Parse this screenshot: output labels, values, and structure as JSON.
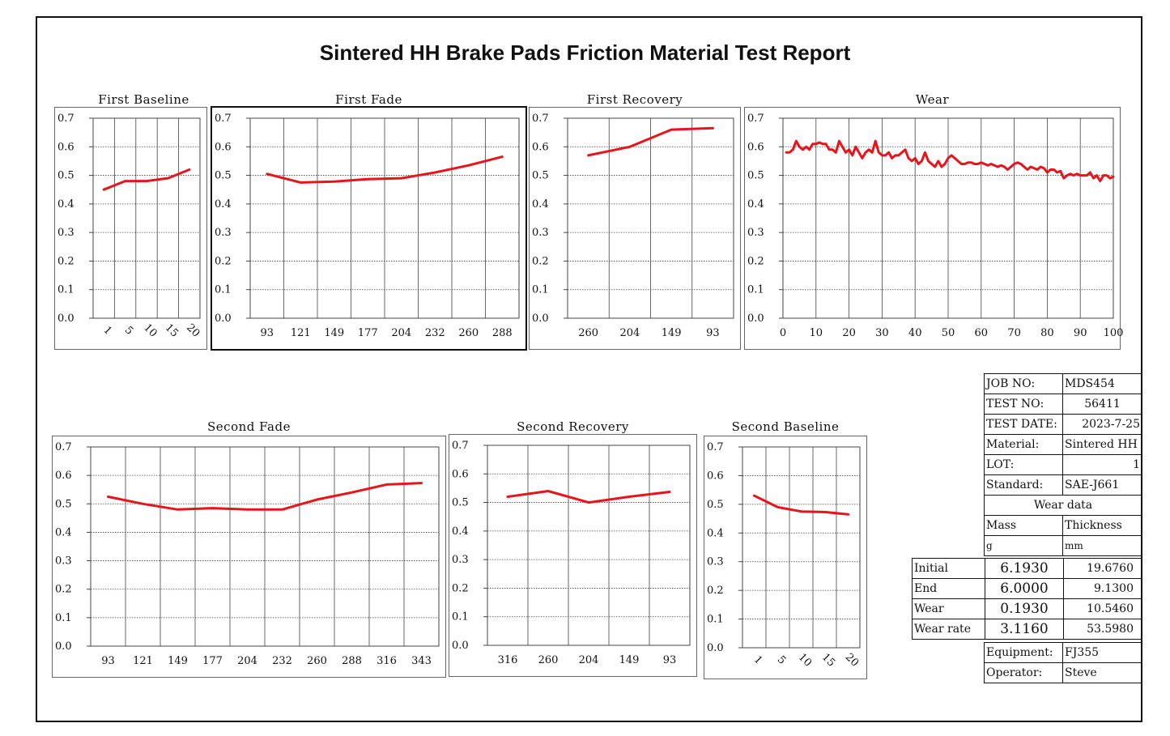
{
  "title": "Sintered HH Brake Pads Friction Material Test Report",
  "colors": {
    "series": "#e8141b",
    "grid": "#444444",
    "text": "#111111"
  },
  "chart_data": [
    {
      "id": "first-baseline",
      "title": "First Baseline",
      "type": "line",
      "categories": [
        "1",
        "5",
        "10",
        "15",
        "20"
      ],
      "values": [
        0.45,
        0.48,
        0.48,
        0.49,
        0.52
      ],
      "ylim": [
        0,
        0.7
      ],
      "yticks": [
        "0.7",
        "0.6",
        "0.5",
        "0.4",
        "0.3",
        "0.2",
        "0.1",
        "0.0"
      ],
      "tick_rotation": "rotated",
      "grid": true
    },
    {
      "id": "first-fade",
      "title": "First Fade",
      "type": "line",
      "categories": [
        "93",
        "121",
        "149",
        "177",
        "204",
        "232",
        "260",
        "288"
      ],
      "values": [
        0.505,
        0.475,
        0.478,
        0.487,
        0.49,
        0.51,
        0.535,
        0.565
      ],
      "ylim": [
        0,
        0.7
      ],
      "yticks": [
        "0.7",
        "0.6",
        "0.5",
        "0.4",
        "0.3",
        "0.2",
        "0.1",
        "0.0"
      ],
      "grid": true
    },
    {
      "id": "first-recovery",
      "title": "First Recovery",
      "type": "line",
      "categories": [
        "260",
        "204",
        "149",
        "93"
      ],
      "values": [
        0.57,
        0.6,
        0.66,
        0.665
      ],
      "ylim": [
        0,
        0.7
      ],
      "yticks": [
        "0.7",
        "0.6",
        "0.5",
        "0.4",
        "0.3",
        "0.2",
        "0.1",
        "0.0"
      ],
      "grid": true
    },
    {
      "id": "wear",
      "title": "Wear",
      "type": "line",
      "xticks": [
        "0",
        "10",
        "20",
        "30",
        "40",
        "50",
        "60",
        "70",
        "80",
        "90",
        "100"
      ],
      "x": [
        1,
        2,
        3,
        4,
        5,
        6,
        7,
        8,
        9,
        10,
        11,
        12,
        13,
        14,
        15,
        16,
        17,
        18,
        19,
        20,
        21,
        22,
        23,
        24,
        25,
        26,
        27,
        28,
        29,
        30,
        31,
        32,
        33,
        34,
        35,
        36,
        37,
        38,
        39,
        40,
        41,
        42,
        43,
        44,
        45,
        46,
        47,
        48,
        49,
        50,
        51,
        52,
        53,
        54,
        55,
        56,
        57,
        58,
        59,
        60,
        61,
        62,
        63,
        64,
        65,
        66,
        67,
        68,
        69,
        70,
        71,
        72,
        73,
        74,
        75,
        76,
        77,
        78,
        79,
        80,
        81,
        82,
        83,
        84,
        85,
        86,
        87,
        88,
        89,
        90,
        91,
        92,
        93,
        94,
        95,
        96,
        97,
        98,
        99,
        100
      ],
      "values": [
        0.58,
        0.58,
        0.59,
        0.62,
        0.6,
        0.59,
        0.6,
        0.59,
        0.61,
        0.61,
        0.615,
        0.61,
        0.61,
        0.59,
        0.59,
        0.58,
        0.62,
        0.6,
        0.58,
        0.59,
        0.57,
        0.6,
        0.58,
        0.56,
        0.58,
        0.59,
        0.58,
        0.62,
        0.58,
        0.57,
        0.57,
        0.58,
        0.56,
        0.57,
        0.57,
        0.58,
        0.59,
        0.56,
        0.55,
        0.56,
        0.54,
        0.55,
        0.58,
        0.55,
        0.54,
        0.53,
        0.55,
        0.53,
        0.54,
        0.56,
        0.57,
        0.56,
        0.55,
        0.54,
        0.54,
        0.545,
        0.545,
        0.54,
        0.54,
        0.545,
        0.54,
        0.535,
        0.54,
        0.535,
        0.53,
        0.535,
        0.53,
        0.52,
        0.53,
        0.54,
        0.545,
        0.54,
        0.53,
        0.52,
        0.53,
        0.525,
        0.52,
        0.53,
        0.525,
        0.51,
        0.52,
        0.52,
        0.51,
        0.515,
        0.49,
        0.5,
        0.505,
        0.5,
        0.505,
        0.5,
        0.5,
        0.5,
        0.51,
        0.49,
        0.5,
        0.48,
        0.5,
        0.5,
        0.49,
        0.495
      ],
      "xlim": [
        0,
        100
      ],
      "ylim": [
        0,
        0.7
      ],
      "yticks": [
        "0.7",
        "0.6",
        "0.5",
        "0.4",
        "0.3",
        "0.2",
        "0.1",
        "0.0"
      ],
      "grid": true
    },
    {
      "id": "second-fade",
      "title": "Second Fade",
      "type": "line",
      "categories": [
        "93",
        "121",
        "149",
        "177",
        "204",
        "232",
        "260",
        "288",
        "316",
        "343"
      ],
      "values": [
        0.525,
        0.5,
        0.48,
        0.485,
        0.48,
        0.48,
        0.515,
        0.54,
        0.568,
        0.573
      ],
      "ylim": [
        0,
        0.7
      ],
      "yticks": [
        "0.7",
        "0.6",
        "0.5",
        "0.4",
        "0.3",
        "0.2",
        "0.1",
        "0.0"
      ],
      "grid": true
    },
    {
      "id": "second-recovery",
      "title": "Second Recovery",
      "type": "line",
      "categories": [
        "316",
        "260",
        "204",
        "149",
        "93"
      ],
      "values": [
        0.52,
        0.54,
        0.5,
        0.52,
        0.537
      ],
      "ylim": [
        0,
        0.7
      ],
      "yticks": [
        "0.7",
        "0.6",
        "0.5",
        "0.4",
        "0.3",
        "0.2",
        "0.1",
        "0.0"
      ],
      "grid": true
    },
    {
      "id": "second-baseline",
      "title": "Second Baseline",
      "type": "line",
      "categories": [
        "1",
        "5",
        "10",
        "15",
        "20"
      ],
      "values": [
        0.53,
        0.49,
        0.475,
        0.473,
        0.465
      ],
      "ylim": [
        0,
        0.7
      ],
      "yticks": [
        "0.7",
        "0.6",
        "0.5",
        "0.4",
        "0.3",
        "0.2",
        "0.1",
        "0.0"
      ],
      "tick_rotation": "rotated",
      "grid": true
    }
  ],
  "info": {
    "job_no_label": "JOB NO:",
    "job_no": "MDS454",
    "test_no_label": "TEST NO:",
    "test_no": "56411",
    "test_date_label": "TEST DATE:",
    "test_date": "2023-7-25",
    "material_label": "Material:",
    "material": "Sintered HH",
    "lot_label": "LOT:",
    "lot": "1",
    "standard_label": "Standard:",
    "standard": "SAE-J661",
    "wear_data_label": "Wear data",
    "mass_label": "Mass",
    "thickness_label": "Thickness",
    "mass_unit": "g",
    "thickness_unit": "mm",
    "rows": [
      {
        "label": "Initial",
        "mass": "6.1930",
        "thickness": "19.6760"
      },
      {
        "label": "End",
        "mass": "6.0000",
        "thickness": "9.1300"
      },
      {
        "label": "Wear",
        "mass": "0.1930",
        "thickness": "10.5460"
      },
      {
        "label": "Wear rate",
        "mass": "3.1160",
        "thickness": "53.5980"
      }
    ],
    "equipment_label": "Equipment:",
    "equipment": "FJ355",
    "operator_label": "Operator:",
    "operator": "Steve"
  }
}
